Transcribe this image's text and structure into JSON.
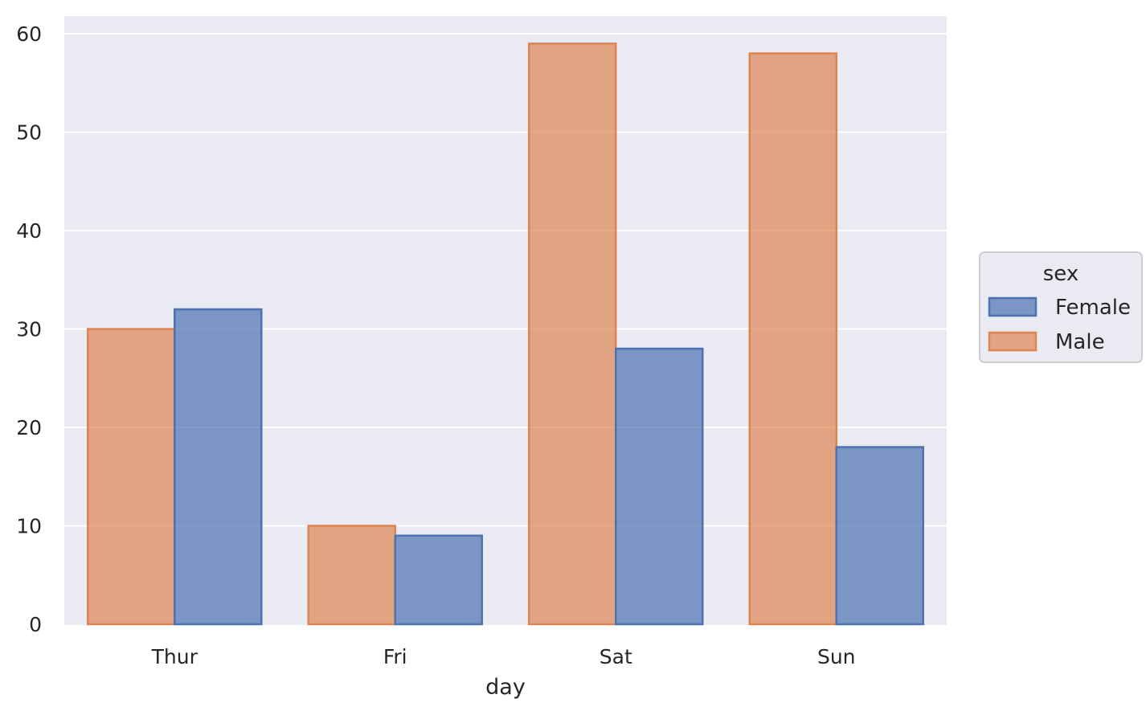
{
  "chart_data": {
    "type": "bar",
    "title": "",
    "xlabel": "day",
    "ylabel": "",
    "categories": [
      "Thur",
      "Fri",
      "Sat",
      "Sun"
    ],
    "yticks": [
      0,
      10,
      20,
      30,
      40,
      50,
      60
    ],
    "ylim": [
      0,
      62
    ],
    "grid": true,
    "legend": {
      "title": "sex",
      "placement": "right",
      "entries": [
        "Female",
        "Male"
      ]
    },
    "series": [
      {
        "name": "Male",
        "values": [
          30,
          10,
          59,
          58
        ],
        "color": "#dd8452",
        "fill_opacity": 0.7
      },
      {
        "name": "Female",
        "values": [
          32,
          9,
          28,
          18
        ],
        "color": "#4c72b0",
        "fill_opacity": 0.7
      }
    ],
    "colors": {
      "plot_background": "#eaeaf2",
      "grid": "#ffffff",
      "text": "#262626"
    }
  }
}
